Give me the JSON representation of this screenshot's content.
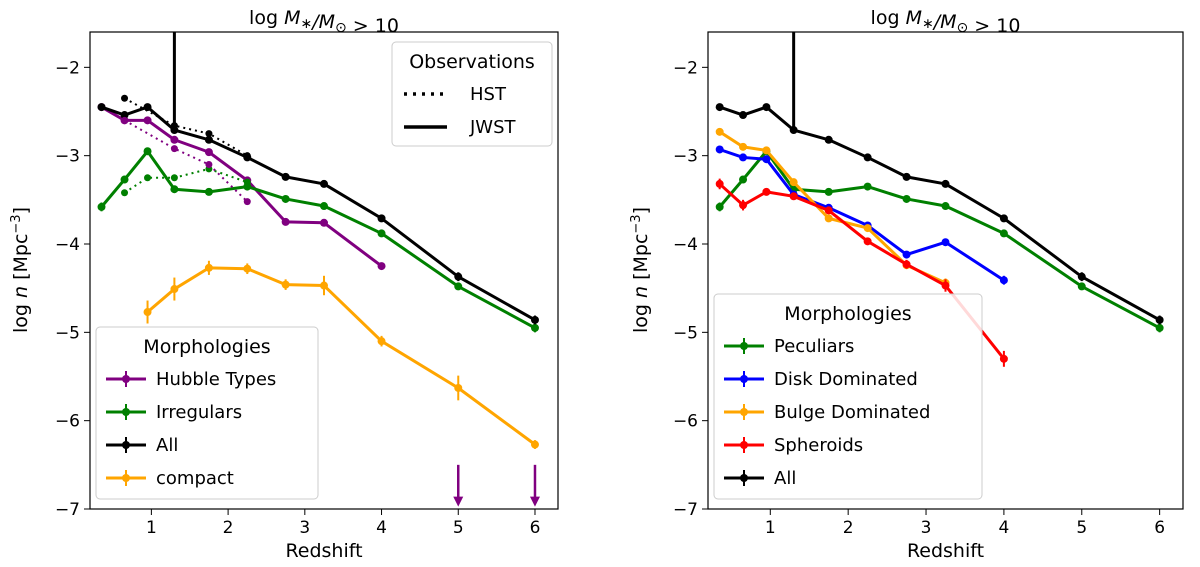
{
  "chart_data": [
    {
      "type": "line",
      "title": "log M*/M⊙ > 10",
      "xlabel": "Redshift",
      "ylabel": "log n [Mpc⁻³]",
      "xlim": [
        0.2,
        6.3
      ],
      "ylim": [
        -7,
        -1.6
      ],
      "xticks": [
        1,
        2,
        3,
        4,
        5,
        6
      ],
      "yticks": [
        -7,
        -6,
        -5,
        -4,
        -3,
        -2
      ],
      "series": [
        {
          "name": "Hubble Types",
          "color": "#800080",
          "style": "solid",
          "x": [
            0.35,
            0.65,
            0.95,
            1.3,
            1.75,
            2.25,
            2.75,
            3.25,
            4.0
          ],
          "y": [
            -2.45,
            -2.6,
            -2.6,
            -2.82,
            -2.96,
            -3.28,
            -3.75,
            -3.76,
            -4.25
          ],
          "err": [
            0.03,
            0.03,
            0.03,
            0.03,
            0.03,
            0.03,
            0.03,
            0.04,
            0.04
          ],
          "upper_limits_x": [
            5.0,
            6.0
          ]
        },
        {
          "name": "Irregulars",
          "color": "#008000",
          "style": "solid",
          "x": [
            0.35,
            0.65,
            0.95,
            1.3,
            1.75,
            2.25,
            2.75,
            3.25,
            4.0,
            5.0,
            6.0
          ],
          "y": [
            -3.58,
            -3.27,
            -2.95,
            -3.38,
            -3.41,
            -3.35,
            -3.49,
            -3.57,
            -3.88,
            -4.48,
            -4.95
          ],
          "err": [
            0.05,
            0.03,
            0.03,
            0.03,
            0.03,
            0.03,
            0.03,
            0.03,
            0.03,
            0.03,
            0.05
          ]
        },
        {
          "name": "All",
          "color": "#000000",
          "style": "solid",
          "x": [
            0.35,
            0.65,
            0.95,
            1.3,
            1.75,
            2.25,
            2.75,
            3.25,
            4.0,
            5.0,
            6.0
          ],
          "y": [
            -2.45,
            -2.54,
            -2.45,
            -2.71,
            -2.82,
            -3.02,
            -3.24,
            -3.32,
            -3.71,
            -4.37,
            -4.86
          ],
          "err": [
            0.02,
            0.02,
            0.02,
            0.02,
            0.02,
            0.03,
            0.02,
            0.02,
            0.02,
            0.05,
            0.05
          ]
        },
        {
          "name": "compact",
          "color": "#ffa500",
          "style": "solid",
          "x": [
            0.95,
            1.3,
            1.75,
            2.25,
            2.75,
            3.25,
            4.0,
            5.0,
            6.0
          ],
          "y": [
            -4.77,
            -4.51,
            -4.27,
            -4.28,
            -4.46,
            -4.47,
            -5.1,
            -5.63,
            -6.27
          ],
          "err": [
            0.13,
            0.13,
            0.08,
            0.06,
            0.06,
            0.11,
            0.06,
            0.14,
            0.05
          ]
        },
        {
          "name": "HST All",
          "color": "#000000",
          "style": "dotted",
          "legend": false,
          "x": [
            0.65,
            1.3,
            1.75,
            2.25
          ],
          "y": [
            -2.35,
            -2.66,
            -2.75,
            -3.0
          ]
        },
        {
          "name": "HST Irregulars",
          "color": "#008000",
          "style": "dotted",
          "legend": false,
          "x": [
            0.65,
            0.95,
            1.3,
            1.75,
            2.25
          ],
          "y": [
            -3.42,
            -3.25,
            -3.25,
            -3.15,
            -3.3
          ]
        },
        {
          "name": "HST Hubble Types",
          "color": "#800080",
          "style": "dotted",
          "legend": false,
          "x": [
            0.65,
            1.3,
            1.75,
            2.25
          ],
          "y": [
            -2.6,
            -2.92,
            -3.1,
            -3.52
          ]
        }
      ],
      "jwst_line_x": 1.3,
      "legends": [
        {
          "title": "Morphologies",
          "position": "lower-left",
          "entries": [
            "Hubble Types",
            "Irregulars",
            "All",
            "compact"
          ]
        },
        {
          "title": "Observations",
          "position": "upper-right",
          "entries": [
            {
              "label": "HST",
              "style": "dotted"
            },
            {
              "label": "JWST",
              "style": "solid"
            }
          ]
        }
      ]
    },
    {
      "type": "line",
      "title": "log M*/M⊙ > 10",
      "xlabel": "Redshift",
      "ylabel": "log n [Mpc⁻³]",
      "xlim": [
        0.2,
        6.3
      ],
      "ylim": [
        -7,
        -1.6
      ],
      "xticks": [
        1,
        2,
        3,
        4,
        5,
        6
      ],
      "yticks": [
        -7,
        -6,
        -5,
        -4,
        -3,
        -2
      ],
      "series": [
        {
          "name": "Peculiars",
          "color": "#008000",
          "style": "solid",
          "x": [
            0.35,
            0.65,
            0.95,
            1.3,
            1.75,
            2.25,
            2.75,
            3.25,
            4.0,
            5.0,
            6.0
          ],
          "y": [
            -3.58,
            -3.27,
            -2.95,
            -3.38,
            -3.41,
            -3.35,
            -3.49,
            -3.57,
            -3.88,
            -4.48,
            -4.95
          ],
          "err": [
            0.05,
            0.03,
            0.03,
            0.03,
            0.03,
            0.03,
            0.03,
            0.03,
            0.03,
            0.03,
            0.05
          ]
        },
        {
          "name": "Disk Dominated",
          "color": "#0000ff",
          "style": "solid",
          "x": [
            0.35,
            0.65,
            0.95,
            1.3,
            1.75,
            2.25,
            2.75,
            3.25,
            4.0
          ],
          "y": [
            -2.93,
            -3.02,
            -3.04,
            -3.44,
            -3.59,
            -3.79,
            -4.12,
            -3.98,
            -4.41
          ],
          "err": [
            0.03,
            0.03,
            0.03,
            0.03,
            0.03,
            0.03,
            0.04,
            0.04,
            0.05
          ]
        },
        {
          "name": "Bulge Dominated",
          "color": "#ffa500",
          "style": "solid",
          "x": [
            0.35,
            0.65,
            0.95,
            1.3,
            1.75,
            2.25,
            2.75,
            3.25
          ],
          "y": [
            -2.73,
            -2.9,
            -2.94,
            -3.3,
            -3.71,
            -3.82,
            -4.24,
            -4.44
          ],
          "err": [
            0.03,
            0.03,
            0.03,
            0.03,
            0.03,
            0.03,
            0.04,
            0.05
          ]
        },
        {
          "name": "Spheroids",
          "color": "#ff0000",
          "style": "solid",
          "x": [
            0.35,
            0.65,
            0.95,
            1.3,
            1.75,
            2.25,
            2.75,
            3.25,
            4.0
          ],
          "y": [
            -3.32,
            -3.56,
            -3.41,
            -3.46,
            -3.62,
            -3.97,
            -4.23,
            -4.47,
            -5.3
          ],
          "err": [
            0.06,
            0.06,
            0.04,
            0.04,
            0.04,
            0.04,
            0.05,
            0.07,
            0.09
          ]
        },
        {
          "name": "All",
          "color": "#000000",
          "style": "solid",
          "x": [
            0.35,
            0.65,
            0.95,
            1.3,
            1.75,
            2.25,
            2.75,
            3.25,
            4.0,
            5.0,
            6.0
          ],
          "y": [
            -2.45,
            -2.54,
            -2.45,
            -2.71,
            -2.82,
            -3.02,
            -3.24,
            -3.32,
            -3.71,
            -4.37,
            -4.86
          ],
          "err": [
            0.02,
            0.02,
            0.02,
            0.02,
            0.02,
            0.03,
            0.02,
            0.02,
            0.02,
            0.05,
            0.05
          ]
        }
      ],
      "jwst_line_x": 1.3,
      "legends": [
        {
          "title": "Morphologies",
          "position": "lower-left",
          "entries": [
            "Peculiars",
            "Disk Dominated",
            "Bulge Dominated",
            "Spheroids",
            "All"
          ]
        }
      ]
    }
  ]
}
